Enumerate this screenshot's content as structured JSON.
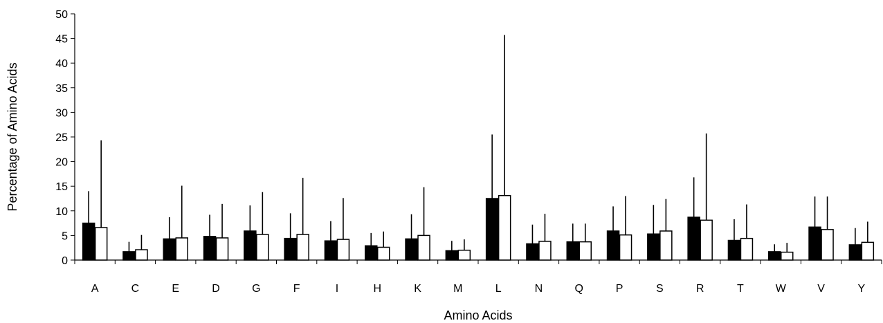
{
  "chart_data": {
    "type": "bar",
    "title": "",
    "xlabel": "Amino Acids",
    "ylabel": "Percentage of Amino Acids",
    "ylim": [
      0,
      50
    ],
    "yticks": [
      0,
      5,
      10,
      15,
      20,
      25,
      30,
      35,
      40,
      45,
      50
    ],
    "grid": false,
    "categories": [
      "A",
      "C",
      "E",
      "D",
      "G",
      "F",
      "I",
      "H",
      "K",
      "M",
      "L",
      "N",
      "Q",
      "P",
      "S",
      "R",
      "T",
      "W",
      "V",
      "Y"
    ],
    "series": [
      {
        "fill": "#000000",
        "values": [
          7.5,
          1.7,
          4.3,
          4.8,
          5.9,
          4.4,
          3.9,
          2.9,
          4.3,
          1.9,
          12.5,
          3.3,
          3.7,
          5.9,
          5.3,
          8.7,
          4.0,
          1.7,
          6.7,
          3.1
        ],
        "errors": [
          6.5,
          2.0,
          4.4,
          4.4,
          5.2,
          5.1,
          4.0,
          2.6,
          5.0,
          2.0,
          13.0,
          3.9,
          3.7,
          5.0,
          5.9,
          8.1,
          4.3,
          1.5,
          6.2,
          3.4
        ]
      },
      {
        "fill": "#ffffff",
        "values": [
          6.6,
          2.1,
          4.5,
          4.5,
          5.2,
          5.2,
          4.2,
          2.6,
          5.0,
          2.0,
          13.1,
          3.8,
          3.7,
          5.1,
          5.9,
          8.1,
          4.4,
          1.6,
          6.2,
          3.6
        ],
        "errors": [
          17.7,
          3.0,
          10.6,
          6.9,
          8.6,
          11.5,
          8.4,
          3.2,
          9.8,
          2.2,
          32.6,
          5.6,
          3.7,
          7.9,
          6.5,
          17.6,
          6.9,
          1.9,
          6.7,
          4.2
        ]
      }
    ]
  }
}
